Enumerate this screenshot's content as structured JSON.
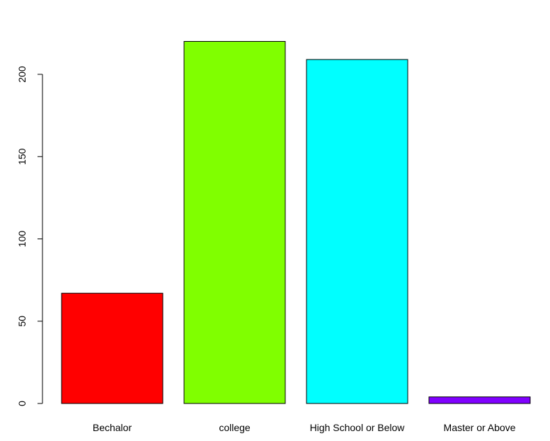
{
  "chart_data": {
    "type": "bar",
    "title": "",
    "xlabel": "",
    "ylabel": "",
    "categories": [
      "Bechalor",
      "college",
      "High School or Below",
      "Master or Above"
    ],
    "values": [
      67,
      220,
      209,
      4
    ],
    "colors": [
      "#FF0000",
      "#80FF00",
      "#00FFFF",
      "#8000FF"
    ],
    "ylim": [
      0,
      230
    ],
    "yticks": [
      0,
      50,
      100,
      150,
      200
    ],
    "ytick_labels": [
      "0",
      "50",
      "100",
      "150",
      "200"
    ],
    "grid": false,
    "legend": "none"
  }
}
